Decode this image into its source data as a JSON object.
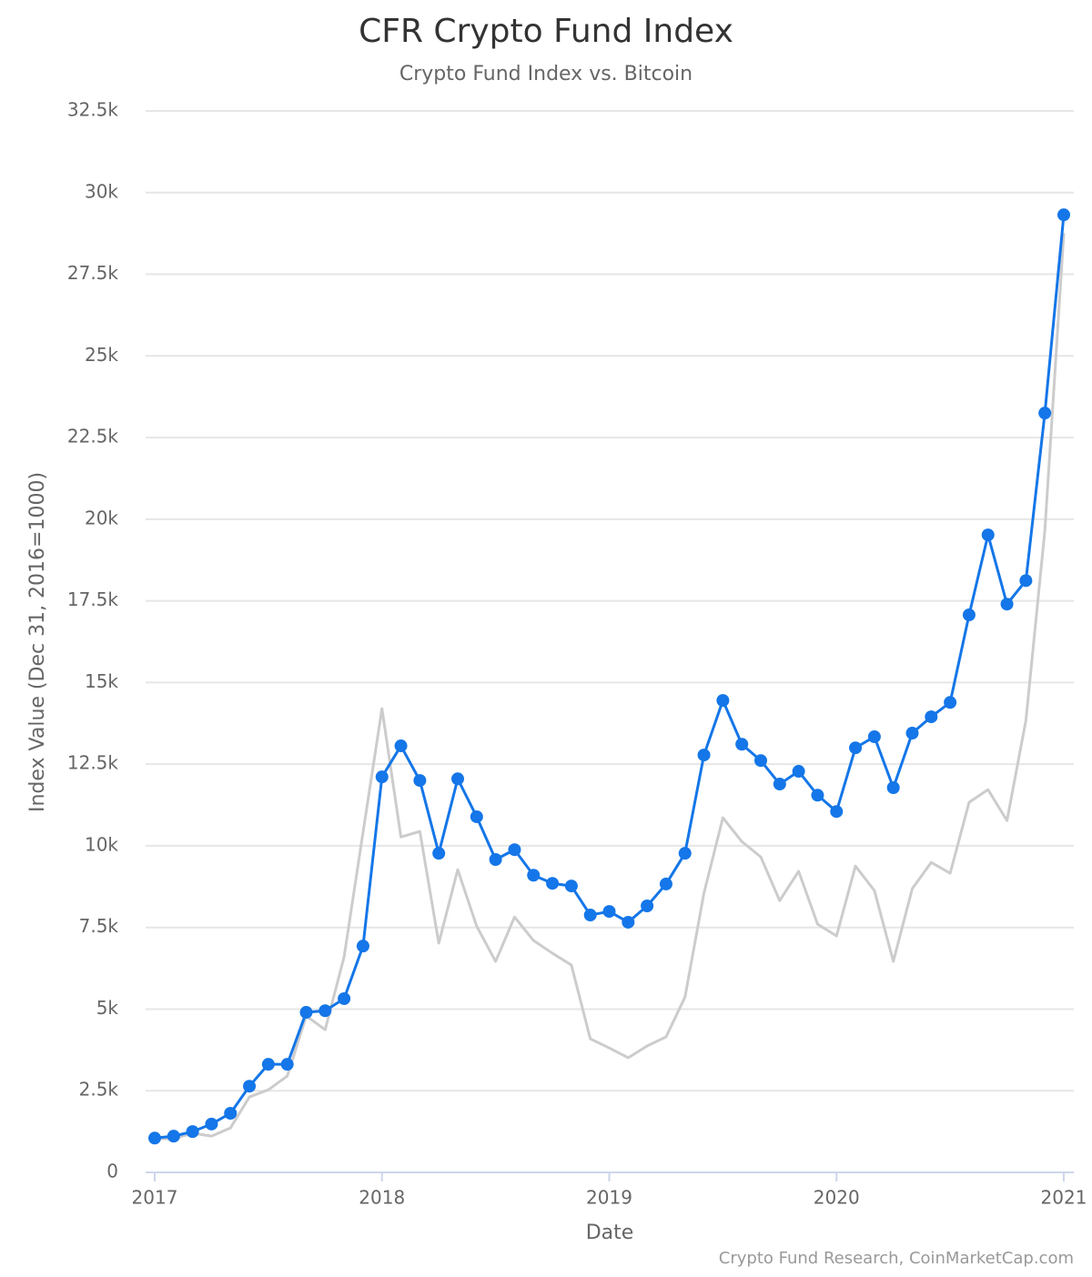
{
  "chart_data": {
    "type": "line",
    "title": "CFR Crypto Fund Index",
    "subtitle": "Crypto Fund Index vs. Bitcoin",
    "xlabel": "Date",
    "ylabel": "Index Value (Dec 31, 2016=1000)",
    "credits": "Crypto Fund Research, CoinMarketCap.com",
    "categories": [
      "2017",
      null,
      null,
      null,
      null,
      null,
      null,
      null,
      null,
      null,
      null,
      null,
      "2018",
      null,
      null,
      null,
      null,
      null,
      null,
      null,
      null,
      null,
      null,
      null,
      "2019",
      null,
      null,
      null,
      null,
      null,
      null,
      null,
      null,
      null,
      null,
      null,
      "2020",
      null,
      null,
      null,
      null,
      null,
      null,
      null,
      null,
      null,
      null,
      null,
      "2021"
    ],
    "series": [
      {
        "color": "#cccccc",
        "markers": false,
        "values": [
          1030,
          1030,
          1200,
          1110,
          1360,
          2310,
          2530,
          2950,
          4790,
          4370,
          6600,
          10410,
          14200,
          10270,
          10440,
          7020,
          9270,
          7540,
          6460,
          7820,
          7100,
          6710,
          6350,
          4090,
          3810,
          3510,
          3870,
          4150,
          5370,
          8550,
          10860,
          10130,
          9660,
          8320,
          9220,
          7600,
          7240,
          9380,
          8630,
          6460,
          8690,
          9490,
          9160,
          11330,
          11720,
          10770,
          13840,
          19650,
          28760
        ]
      },
      {
        "color": "#1476e8",
        "markers": true,
        "values": [
          1050,
          1110,
          1250,
          1480,
          1810,
          2640,
          3310,
          3310,
          4900,
          4950,
          5320,
          6930,
          12110,
          13060,
          12000,
          9770,
          12050,
          10890,
          9580,
          9880,
          9100,
          8850,
          8770,
          7880,
          7990,
          7660,
          8160,
          8830,
          9770,
          12780,
          14450,
          13110,
          12610,
          11890,
          12280,
          11550,
          11050,
          13000,
          13340,
          11780,
          13450,
          13950,
          14390,
          17070,
          19520,
          17400,
          18120,
          23250,
          29320
        ]
      }
    ],
    "ylim": [
      0,
      32500
    ],
    "yticks": [
      0,
      {
        "value": 2500,
        "label": "2.5k"
      },
      {
        "value": 5000,
        "label": "5k"
      },
      {
        "value": 7500,
        "label": "7.5k"
      },
      {
        "value": 10000,
        "label": "10k"
      },
      {
        "value": 12500,
        "label": "12.5k"
      },
      {
        "value": 15000,
        "label": "15k"
      },
      {
        "value": 17500,
        "label": "17.5k"
      },
      {
        "value": 20000,
        "label": "20k"
      },
      {
        "value": 22500,
        "label": "22.5k"
      },
      {
        "value": 25000,
        "label": "25k"
      },
      {
        "value": 27500,
        "label": "27.5k"
      },
      {
        "value": 30000,
        "label": "30k"
      },
      {
        "value": 32500,
        "label": "32.5k"
      }
    ],
    "grid": true
  }
}
